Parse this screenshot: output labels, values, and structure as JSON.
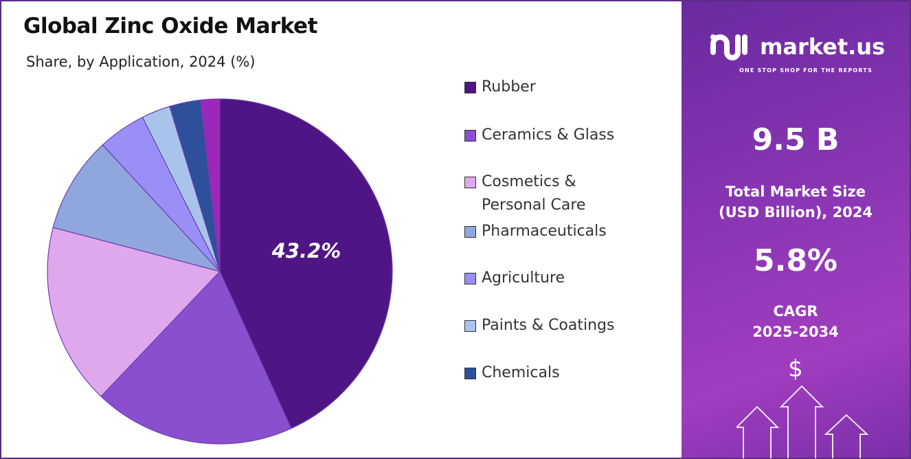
{
  "title": "Global Zinc Oxide Market",
  "subtitle": "Share, by Application, 2024 (%)",
  "chart_data": {
    "type": "pie",
    "title": "Global Zinc Oxide Market",
    "subtitle": "Share, by Application, 2024 (%)",
    "start_angle": "top, clockwise",
    "legend_placement": "right",
    "labels": [
      "Rubber",
      "Ceramics & Glass",
      "Cosmetics & Personal Care",
      "Pharmaceuticals",
      "Agriculture",
      "Paints & Coatings",
      "Chemicals",
      ""
    ],
    "legend_labels": [
      "Rubber",
      "Ceramics & Glass",
      "Cosmetics &",
      "Personal Care",
      "Pharmaceuticals",
      "Agriculture",
      "Paints & Coatings",
      "Chemicals"
    ],
    "values": [
      43.2,
      18.9,
      17.0,
      9.0,
      4.5,
      2.7,
      2.9,
      1.8
    ],
    "colors": [
      "#4f1584",
      "#8a4fcf",
      "#e0a8ec",
      "#8fa7dc",
      "#9a8ff7",
      "#a8c4ec",
      "#2e4f9a",
      "#9c27b8"
    ],
    "data_labels": [
      "43.2%"
    ]
  },
  "panel": {
    "brand": "market.us",
    "tagline": "ONE STOP SHOP FOR THE REPORTS",
    "market_size": "9.5 B",
    "market_size_label_1": "Total Market Size",
    "market_size_label_2": "(USD Billion), 2024",
    "cagr": "5.8%",
    "cagr_label_1": "CAGR",
    "cagr_label_2": "2025-2034",
    "currency_symbol": "$"
  }
}
